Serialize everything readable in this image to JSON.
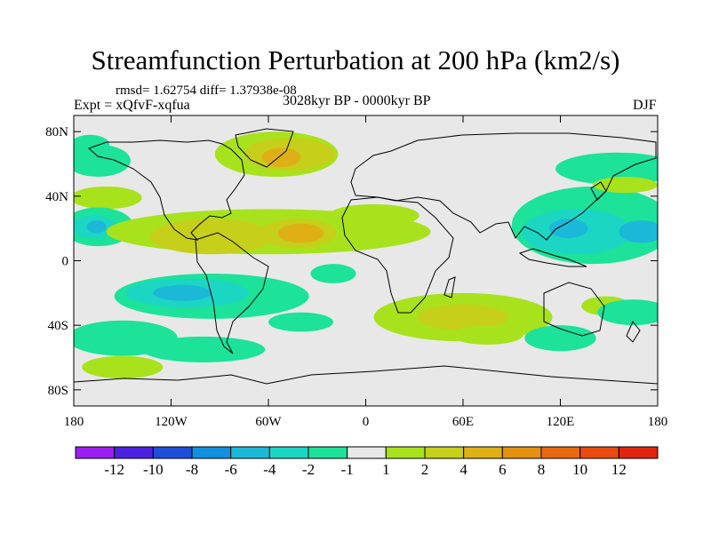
{
  "title": "Streamfunction Perturbation at 200 hPa (km2/s)",
  "stats": "rmsd= 1.62754 diff= 1.37938e-08",
  "expt": "Expt = xQfvF-xqfua",
  "period": "3028kyr BP - 0000kyr BP",
  "season": "DJF",
  "chart_data": {
    "type": "heatmap",
    "title": "Streamfunction Perturbation at 200 hPa (km2/s)",
    "xlabel": "",
    "ylabel": "",
    "xlim": [
      -180,
      180
    ],
    "ylim": [
      -90,
      90
    ],
    "x_ticks": [
      {
        "value": -180,
        "label": "180"
      },
      {
        "value": -120,
        "label": "120W"
      },
      {
        "value": -60,
        "label": "60W"
      },
      {
        "value": 0,
        "label": "0"
      },
      {
        "value": 60,
        "label": "60E"
      },
      {
        "value": 120,
        "label": "120E"
      },
      {
        "value": 180,
        "label": "180"
      }
    ],
    "y_ticks": [
      {
        "value": 80,
        "label": "80N"
      },
      {
        "value": 40,
        "label": "40N"
      },
      {
        "value": 0,
        "label": "0"
      },
      {
        "value": -40,
        "label": "40S"
      },
      {
        "value": -80,
        "label": "80S"
      }
    ],
    "colorbar": {
      "labels": [
        "-12",
        "-10",
        "-8",
        "-6",
        "-4",
        "-2",
        "-1",
        "1",
        "2",
        "4",
        "6",
        "8",
        "10",
        "12"
      ],
      "colors": [
        "#9b1ff0",
        "#4b22e0",
        "#1e4fd8",
        "#1290e0",
        "#1cb8d8",
        "#1cd6c4",
        "#1ce29a",
        "#e8e8e8",
        "#a8e21c",
        "#c6cf19",
        "#deb016",
        "#e49010",
        "#e86a10",
        "#e84a10",
        "#e02410"
      ]
    },
    "anomalies": [
      {
        "lon": -55,
        "lat": 66,
        "rx": 38,
        "ry": 14,
        "level": 1
      },
      {
        "lon": -47,
        "lat": 66,
        "rx": 28,
        "ry": 10,
        "level": 2
      },
      {
        "lon": -52,
        "lat": 64,
        "rx": 12,
        "ry": 6,
        "level": 3
      },
      {
        "lon": -165,
        "lat": 62,
        "rx": 20,
        "ry": 10,
        "level": -1
      },
      {
        "lon": -160,
        "lat": 39,
        "rx": 22,
        "ry": 7,
        "level": 1
      },
      {
        "lon": -165,
        "lat": 21,
        "rx": 22,
        "ry": 12,
        "level": -1
      },
      {
        "lon": -168,
        "lat": 21,
        "rx": 14,
        "ry": 7,
        "level": -2
      },
      {
        "lon": -166,
        "lat": 21,
        "rx": 6,
        "ry": 4,
        "level": -3
      },
      {
        "lon": -60,
        "lat": 18,
        "rx": 100,
        "ry": 14,
        "level": 1
      },
      {
        "lon": -95,
        "lat": 15,
        "rx": 38,
        "ry": 11,
        "level": 2
      },
      {
        "lon": -42,
        "lat": 17,
        "rx": 24,
        "ry": 9,
        "level": 2
      },
      {
        "lon": -40,
        "lat": 17,
        "rx": 14,
        "ry": 6,
        "level": 3
      },
      {
        "lon": 5,
        "lat": 28,
        "rx": 28,
        "ry": 7,
        "level": 1
      },
      {
        "lon": -95,
        "lat": -22,
        "rx": 60,
        "ry": 14,
        "level": -1
      },
      {
        "lon": -110,
        "lat": -20,
        "rx": 38,
        "ry": 9,
        "level": -2
      },
      {
        "lon": -113,
        "lat": -20,
        "rx": 18,
        "ry": 5,
        "level": -3
      },
      {
        "lon": -20,
        "lat": -8,
        "rx": 14,
        "ry": 6,
        "level": -1
      },
      {
        "lon": -150,
        "lat": -48,
        "rx": 34,
        "ry": 11,
        "level": -1
      },
      {
        "lon": -150,
        "lat": -66,
        "rx": 25,
        "ry": 7,
        "level": 1
      },
      {
        "lon": -100,
        "lat": -55,
        "rx": 38,
        "ry": 8,
        "level": -1
      },
      {
        "lon": -40,
        "lat": -38,
        "rx": 20,
        "ry": 6,
        "level": -1
      },
      {
        "lon": 60,
        "lat": -35,
        "rx": 55,
        "ry": 15,
        "level": 1
      },
      {
        "lon": 60,
        "lat": -35,
        "rx": 28,
        "ry": 8,
        "level": 2
      },
      {
        "lon": 75,
        "lat": -46,
        "rx": 22,
        "ry": 6,
        "level": 1
      },
      {
        "lon": 120,
        "lat": -48,
        "rx": 22,
        "ry": 8,
        "level": -1
      },
      {
        "lon": 148,
        "lat": -28,
        "rx": 15,
        "ry": 6,
        "level": 1
      },
      {
        "lon": 165,
        "lat": -32,
        "rx": 22,
        "ry": 8,
        "level": -1
      },
      {
        "lon": 140,
        "lat": 22,
        "rx": 50,
        "ry": 24,
        "level": -1
      },
      {
        "lon": 130,
        "lat": 18,
        "rx": 34,
        "ry": 14,
        "level": -2
      },
      {
        "lon": 125,
        "lat": 20,
        "rx": 12,
        "ry": 6,
        "level": -3
      },
      {
        "lon": 170,
        "lat": 18,
        "rx": 14,
        "ry": 7,
        "level": -3
      },
      {
        "lon": 155,
        "lat": 57,
        "rx": 38,
        "ry": 10,
        "level": -1
      },
      {
        "lon": 160,
        "lat": 47,
        "rx": 20,
        "ry": 5,
        "level": 1
      },
      {
        "lon": -170,
        "lat": 72,
        "rx": 12,
        "ry": 6,
        "level": -1
      }
    ]
  }
}
